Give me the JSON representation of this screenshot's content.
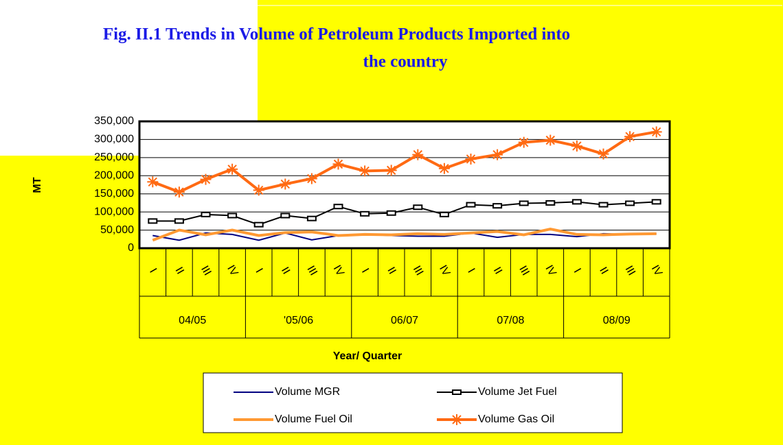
{
  "chart_data": {
    "type": "line",
    "title": [
      "Fig. II.1 Trends in Volume of Petroleum Products Imported into",
      "the country"
    ],
    "y_label": "MT",
    "x_label": "Year/ Quarter",
    "categories": [
      "I",
      "II",
      "III",
      "IV",
      "I",
      "II",
      "III",
      "IV",
      "I",
      "II",
      "III",
      "IV",
      "I",
      "II",
      "III",
      "IV",
      "I",
      "II",
      "III",
      "IV"
    ],
    "groups": [
      "04/05",
      "'05/06",
      "06/07",
      "07/08",
      "08/09"
    ],
    "ylim": [
      0,
      350000
    ],
    "yticks": [
      0,
      {
        "value": 50000,
        "label": "50,000"
      },
      {
        "value": 100000,
        "label": "100,000"
      },
      {
        "value": 150000,
        "label": "150,000"
      },
      {
        "value": 200000,
        "label": "200,000"
      },
      {
        "value": 250000,
        "label": "250,000"
      },
      {
        "value": 300000,
        "label": "300,000"
      },
      {
        "value": 350000,
        "label": "350,000"
      }
    ],
    "grid": true,
    "series": [
      {
        "name": "Volume MGR",
        "color": "#000080",
        "marker": "none",
        "values": [
          35000,
          22000,
          42000,
          38000,
          22000,
          42000,
          23000,
          35000,
          38000,
          35000,
          33000,
          33000,
          42000,
          30000,
          38000,
          38000,
          32000,
          40000,
          38000,
          40000
        ]
      },
      {
        "name": "Volume Jet Fuel",
        "color": "#000000",
        "marker": "square",
        "values": [
          75000,
          75000,
          93000,
          90000,
          65000,
          90000,
          82000,
          115000,
          95000,
          97000,
          113000,
          93000,
          120000,
          117000,
          124000,
          125000,
          128000,
          120000,
          124000,
          128000
        ]
      },
      {
        "name": "Volume Fuel Oil",
        "color": "#ff9933",
        "marker": "none",
        "values": [
          22000,
          50000,
          37000,
          50000,
          35000,
          43000,
          45000,
          35000,
          38000,
          37000,
          40000,
          38000,
          42000,
          46000,
          37000,
          53000,
          38000,
          37000,
          39000,
          40000
        ]
      },
      {
        "name": "Volume Gas Oil",
        "color": "#ff6a13",
        "marker": "star",
        "values": [
          183000,
          155000,
          190000,
          218000,
          160000,
          177000,
          192000,
          232000,
          213000,
          215000,
          258000,
          220000,
          246000,
          258000,
          292000,
          298000,
          282000,
          260000,
          308000,
          321000
        ]
      }
    ]
  }
}
